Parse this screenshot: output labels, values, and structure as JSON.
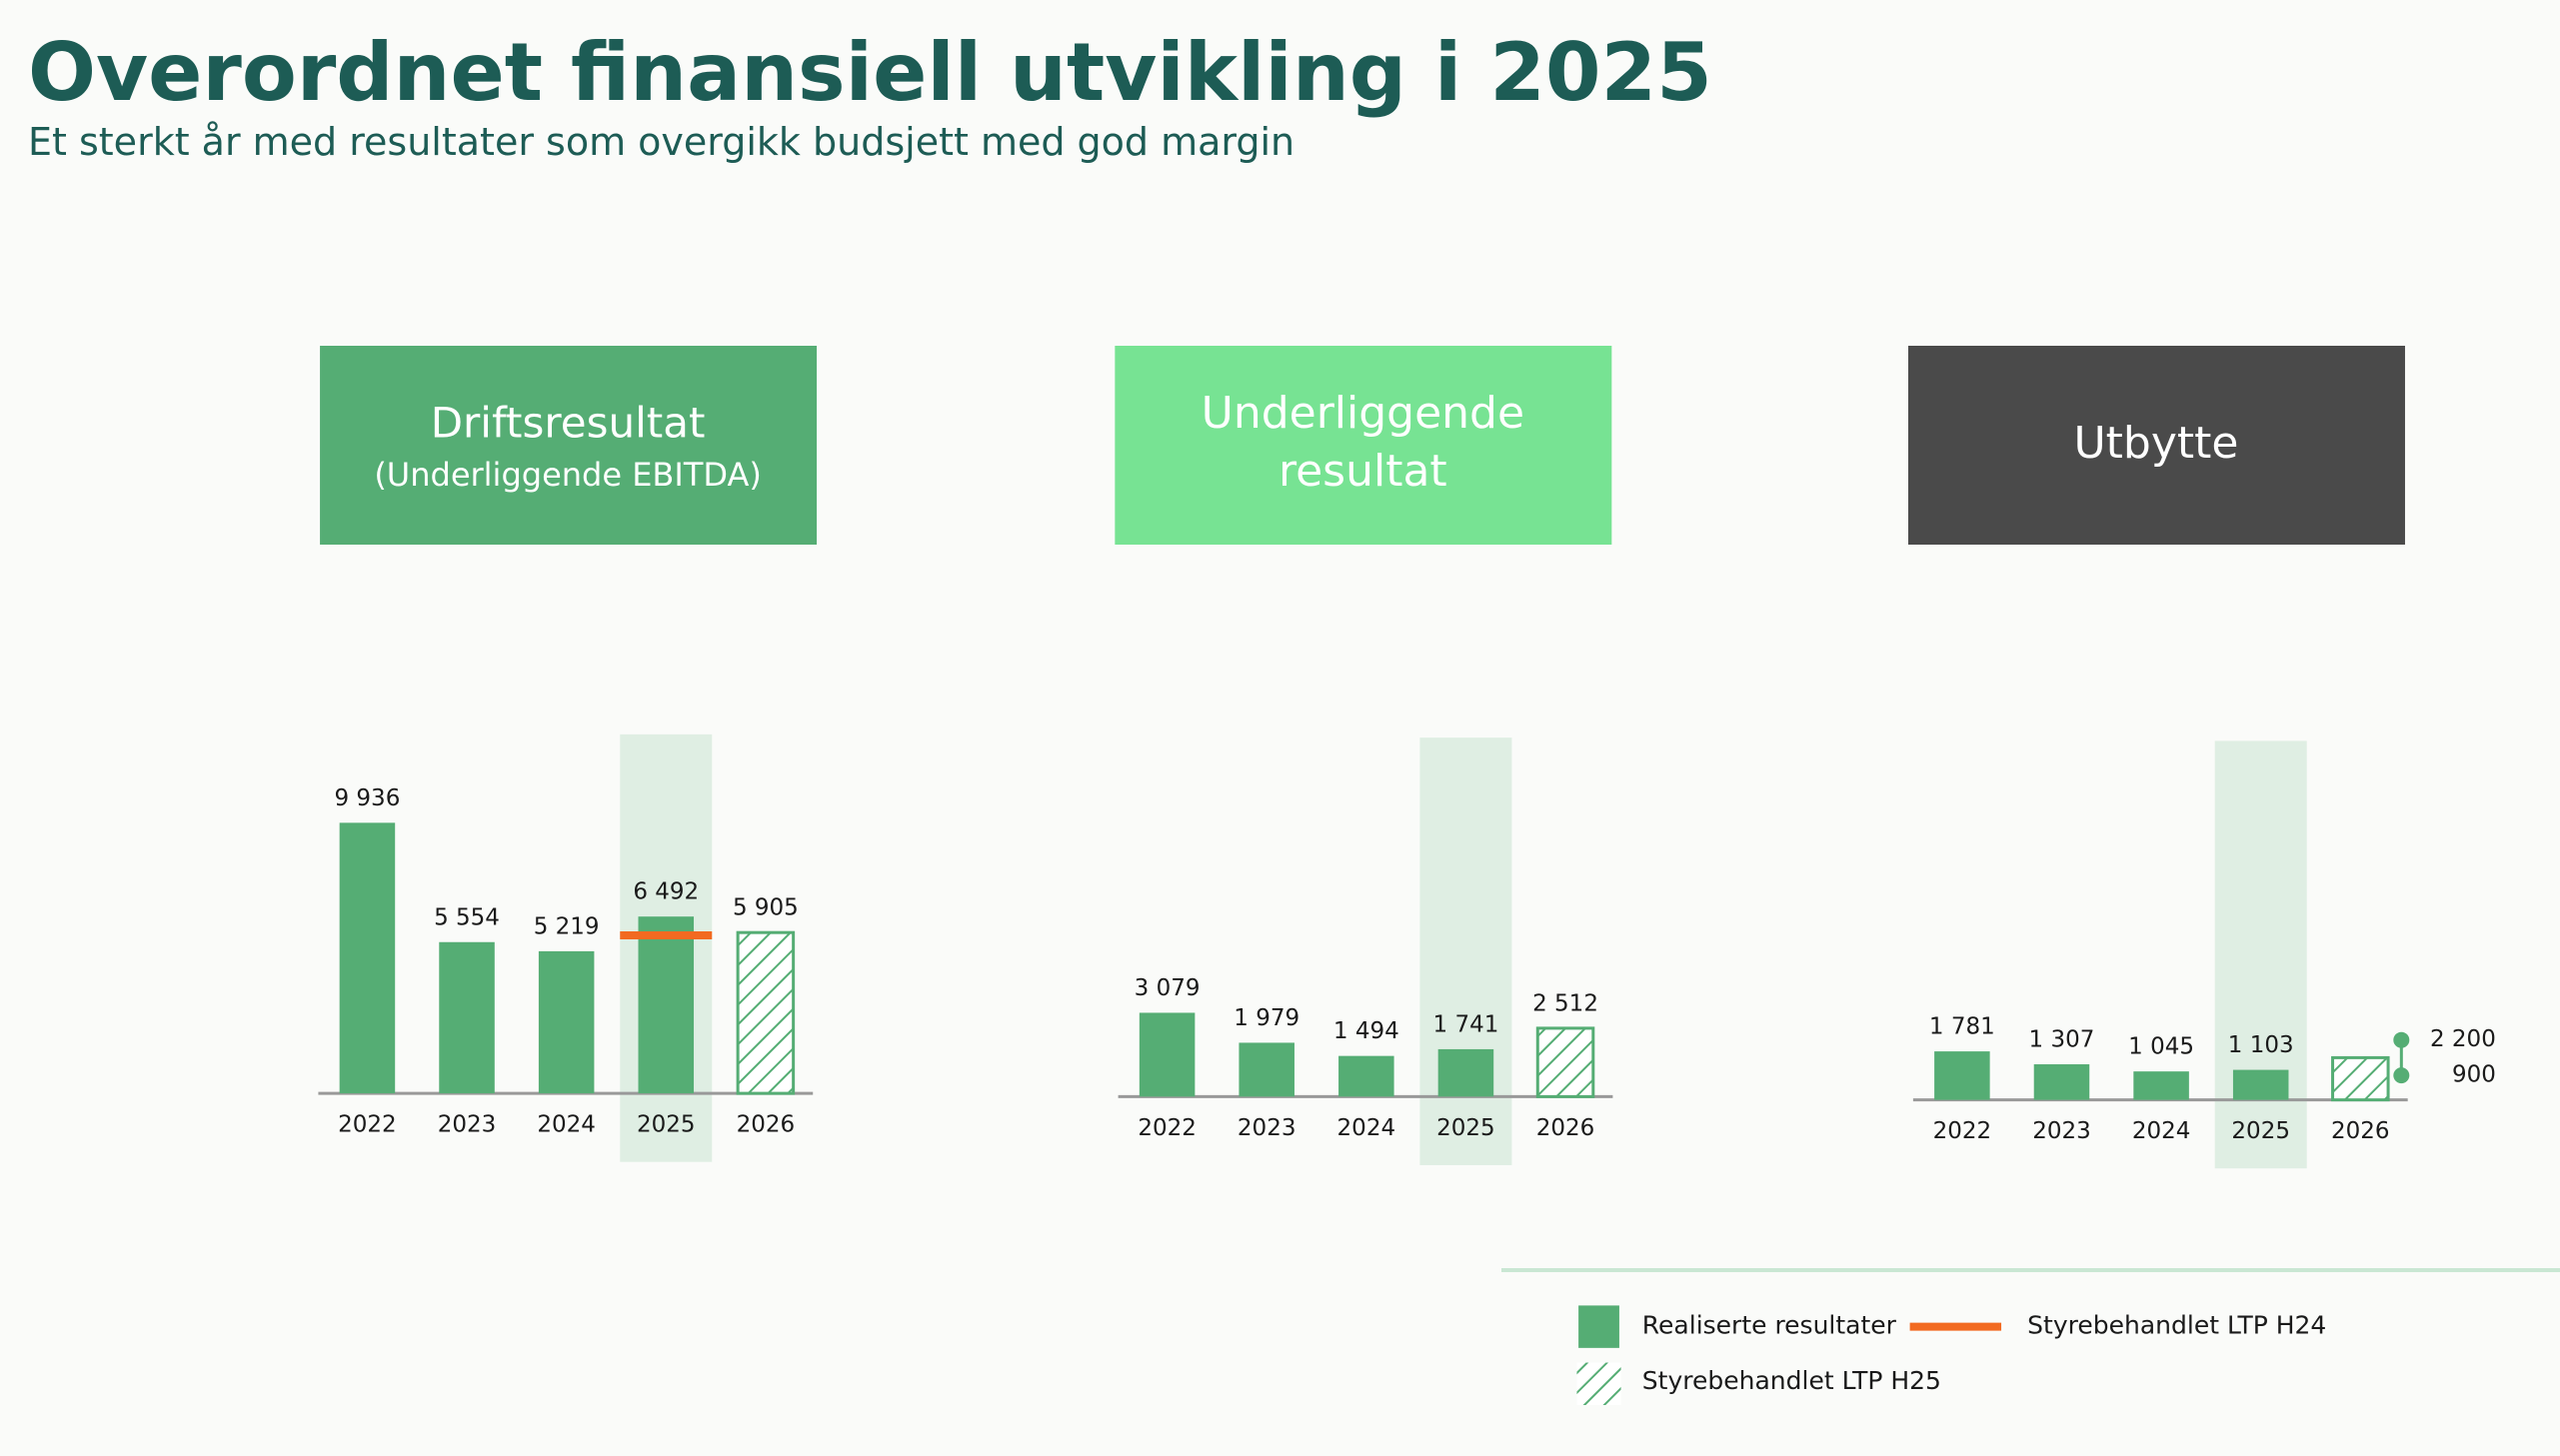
{
  "title": "Overordnet finansiell utvikling i 2025",
  "subtitle": "Et sterkt år med resultater som overgikk budsjett med god margin",
  "chart_data": [
    {
      "type": "bar",
      "title": "Driftsresultat",
      "subtitle": "(Underliggende EBITDA)",
      "header_color": "#55ad74",
      "categories": [
        "2022",
        "2023",
        "2024",
        "2025",
        "2026"
      ],
      "ylim": [
        0,
        12000
      ],
      "series": [
        {
          "name": "Realiserte resultater",
          "style": "solid",
          "color": "#55ad74",
          "values": [
            9936,
            5554,
            5219,
            6492,
            null
          ],
          "value_labels": [
            "9 936",
            "5 554",
            "5 219",
            "6 492",
            null
          ]
        },
        {
          "name": "Styrebehandlet LTP H25",
          "style": "hatch",
          "color": "#55ad74",
          "values": [
            null,
            null,
            null,
            null,
            5905
          ],
          "value_labels": [
            null,
            null,
            null,
            null,
            "5 905"
          ]
        },
        {
          "name": "Styrebehandlet LTP H24",
          "style": "line",
          "color": "#f26a21",
          "values": [
            null,
            null,
            null,
            5800,
            null
          ]
        }
      ]
    },
    {
      "type": "bar",
      "title": "Underliggende resultat",
      "header_color": "#77e393",
      "categories": [
        "2022",
        "2023",
        "2024",
        "2025",
        "2026"
      ],
      "ylim": [
        0,
        12000
      ],
      "series": [
        {
          "name": "Realiserte resultater",
          "style": "solid",
          "color": "#55ad74",
          "values": [
            3079,
            1979,
            1494,
            1741,
            null
          ],
          "value_labels": [
            "3 079",
            "1 979",
            "1 494",
            "1 741",
            null
          ]
        },
        {
          "name": "Styrebehandlet LTP H25",
          "style": "hatch",
          "color": "#55ad74",
          "values": [
            null,
            null,
            null,
            null,
            2512
          ],
          "value_labels": [
            null,
            null,
            null,
            null,
            "2 512"
          ]
        }
      ]
    },
    {
      "type": "bar",
      "title": "Utbytte",
      "header_color": "#4a4a4a",
      "categories": [
        "2022",
        "2023",
        "2024",
        "2025",
        "2026"
      ],
      "ylim": [
        0,
        12000
      ],
      "series": [
        {
          "name": "Realiserte resultater",
          "style": "solid",
          "color": "#55ad74",
          "values": [
            1781,
            1307,
            1045,
            1103,
            null
          ],
          "value_labels": [
            "1 781",
            "1 307",
            "1 045",
            "1 103",
            null
          ]
        },
        {
          "name": "Styrebehandlet LTP H25",
          "style": "hatch",
          "color": "#55ad74",
          "values": [
            null,
            null,
            null,
            null,
            1550
          ]
        }
      ],
      "range_values": [
        2200,
        900
      ],
      "range_labels": [
        "2 200",
        "900"
      ]
    }
  ]
}
